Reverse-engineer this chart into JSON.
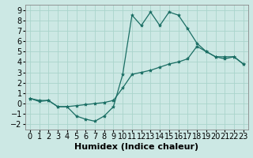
{
  "xlabel": "Humidex (Indice chaleur)",
  "background_color": "#cce8e4",
  "grid_color": "#aad4cc",
  "line_color": "#1a6e64",
  "xlim": [
    -0.5,
    23.5
  ],
  "ylim": [
    -2.5,
    9.5
  ],
  "xticks": [
    0,
    1,
    2,
    3,
    4,
    5,
    6,
    7,
    8,
    9,
    10,
    11,
    12,
    13,
    14,
    15,
    16,
    17,
    18,
    19,
    20,
    21,
    22,
    23
  ],
  "yticks": [
    -2,
    -1,
    0,
    1,
    2,
    3,
    4,
    5,
    6,
    7,
    8,
    9
  ],
  "series1_x": [
    0,
    1,
    2,
    3,
    4,
    5,
    6,
    7,
    8,
    9,
    10,
    11,
    12,
    13,
    14,
    15,
    16,
    17,
    18,
    19,
    20,
    21,
    22,
    23
  ],
  "series1_y": [
    0.5,
    0.2,
    0.3,
    -0.3,
    -0.3,
    -1.2,
    -1.5,
    -1.7,
    -1.2,
    -0.3,
    2.8,
    8.5,
    7.5,
    8.8,
    7.5,
    8.8,
    8.5,
    7.2,
    5.8,
    5.0,
    4.5,
    4.3,
    4.5,
    3.8
  ],
  "series2_x": [
    0,
    1,
    2,
    3,
    4,
    5,
    6,
    7,
    8,
    9,
    10,
    11,
    12,
    13,
    14,
    15,
    16,
    17,
    18,
    19,
    20,
    21,
    22,
    23
  ],
  "series2_y": [
    0.5,
    0.3,
    0.3,
    -0.3,
    -0.3,
    -0.2,
    -0.1,
    0.0,
    0.1,
    0.3,
    1.5,
    2.8,
    3.0,
    3.2,
    3.5,
    3.8,
    4.0,
    4.3,
    5.5,
    5.0,
    4.5,
    4.5,
    4.5,
    3.8
  ],
  "font_size": 7
}
